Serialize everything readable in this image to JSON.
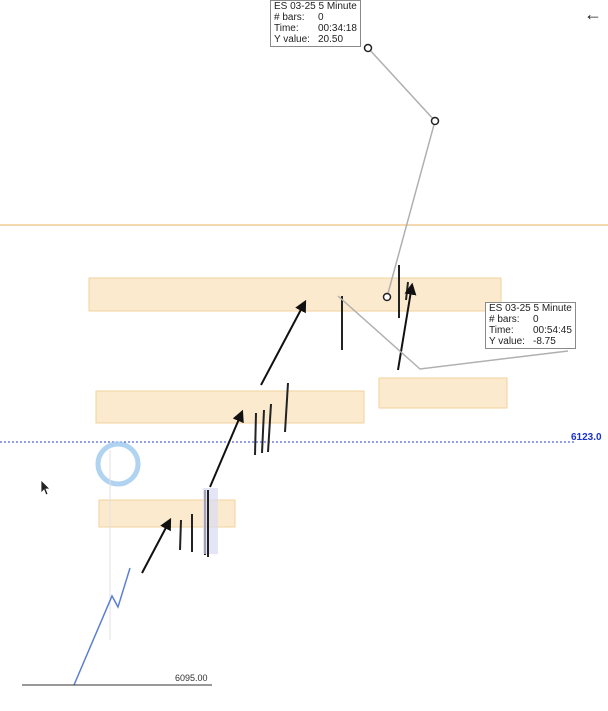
{
  "header": {
    "back_icon": "arrow-left-icon"
  },
  "tooltip_top": {
    "title": "ES 03-25 5 Minute",
    "bars_label": "# bars:",
    "bars_value": "0",
    "time_label": "Time:",
    "time_value": "00:34:18",
    "y_label": "Y value:",
    "y_value": "20.50"
  },
  "tooltip_right": {
    "title": "ES 03-25 5 Minute",
    "bars_label": "# bars:",
    "bars_value": "0",
    "time_label": "Time:",
    "time_value": "00:54:45",
    "y_label": "Y value:",
    "y_value": "-8.75"
  },
  "price_line_label": "6123.0",
  "bottom_price_label": "6095.00",
  "colors": {
    "zone_fill": "#fbe7c6",
    "zone_stroke": "#f0c98e",
    "price_line": "#2a3bd1",
    "orange_line": "#e8b060",
    "price_path": "#5b7fd0",
    "measure_line": "#b0b0b0",
    "highlight_circle": "#9cc8ee"
  }
}
